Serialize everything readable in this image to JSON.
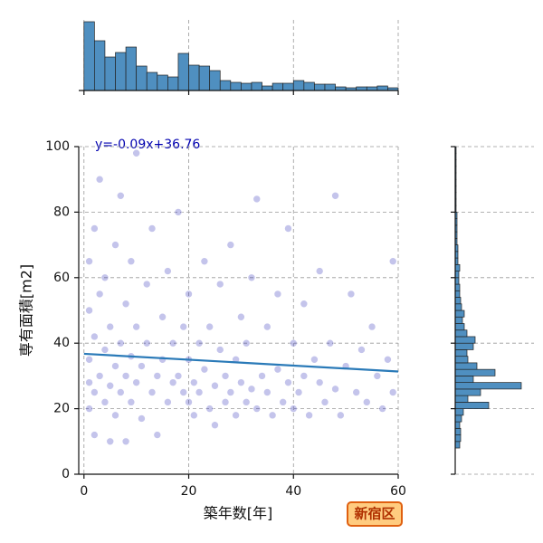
{
  "chart_data": {
    "type": "scatter",
    "x_label": "築年数[年]",
    "y_label": "専有面積[m2]",
    "annotation": "y=-0.09x+36.76",
    "badge": "新宿区",
    "xlim": [
      -1,
      60
    ],
    "ylim": [
      0,
      100
    ],
    "xticks": [
      0,
      20,
      40,
      60
    ],
    "yticks": [
      0,
      20,
      40,
      60,
      80,
      100
    ],
    "grid": true,
    "color": "#2a2ab8",
    "x": [
      1,
      1,
      1,
      1,
      1,
      2,
      2,
      2,
      2,
      3,
      3,
      3,
      4,
      4,
      4,
      5,
      5,
      5,
      6,
      6,
      6,
      7,
      7,
      7,
      8,
      8,
      8,
      9,
      9,
      9,
      10,
      10,
      10,
      11,
      11,
      12,
      12,
      13,
      13,
      14,
      14,
      15,
      15,
      16,
      16,
      17,
      17,
      18,
      18,
      19,
      19,
      20,
      20,
      20,
      21,
      21,
      22,
      22,
      23,
      23,
      24,
      24,
      25,
      25,
      26,
      26,
      27,
      27,
      28,
      28,
      29,
      29,
      30,
      30,
      31,
      31,
      32,
      32,
      33,
      33,
      34,
      35,
      35,
      36,
      37,
      37,
      38,
      39,
      39,
      40,
      40,
      41,
      42,
      42,
      43,
      44,
      45,
      45,
      46,
      47,
      48,
      48,
      49,
      50,
      51,
      52,
      53,
      54,
      55,
      56,
      57,
      58,
      59,
      59
    ],
    "values": [
      35,
      50,
      20,
      65,
      28,
      42,
      25,
      75,
      12,
      30,
      55,
      90,
      38,
      22,
      60,
      10,
      45,
      27,
      33,
      70,
      18,
      40,
      25,
      85,
      30,
      52,
      10,
      36,
      22,
      65,
      28,
      45,
      98,
      33,
      17,
      40,
      58,
      25,
      75,
      30,
      12,
      48,
      35,
      22,
      62,
      40,
      28,
      30,
      80,
      25,
      45,
      22,
      35,
      55,
      28,
      18,
      40,
      25,
      32,
      65,
      20,
      45,
      27,
      15,
      38,
      58,
      22,
      30,
      25,
      70,
      35,
      18,
      28,
      48,
      22,
      40,
      26,
      60,
      20,
      84,
      30,
      25,
      45,
      18,
      32,
      55,
      22,
      28,
      75,
      20,
      40,
      25,
      30,
      52,
      18,
      35,
      28,
      62,
      22,
      40,
      26,
      85,
      18,
      33,
      55,
      25,
      38,
      22,
      45,
      30,
      20,
      35,
      65,
      25
    ],
    "regression": {
      "color": "#2a7ab8",
      "x": [
        0,
        60
      ],
      "values": [
        36.76,
        31.36
      ]
    },
    "marginal_x": {
      "type": "histogram",
      "color": "#4f8fc0",
      "bins": [
        0,
        2,
        4,
        6,
        8,
        10,
        12,
        14,
        16,
        18,
        20,
        22,
        24,
        26,
        28,
        30,
        32,
        34,
        36,
        38,
        40,
        42,
        44,
        46,
        48,
        50,
        52,
        54,
        56,
        58,
        60
      ],
      "values": [
        76,
        55,
        37,
        42,
        48,
        27,
        20,
        17,
        15,
        41,
        28,
        27,
        22,
        11,
        9,
        8,
        9,
        5,
        8,
        8,
        11,
        9,
        7,
        7,
        4,
        3,
        4,
        4,
        5,
        3
      ]
    },
    "marginal_y": {
      "type": "histogram",
      "color": "#4f8fc0",
      "bins": [
        8,
        10,
        12,
        14,
        16,
        18,
        20,
        22,
        24,
        26,
        28,
        30,
        32,
        34,
        36,
        38,
        40,
        42,
        44,
        46,
        48,
        50,
        52,
        54,
        56,
        58,
        60,
        62,
        64,
        66,
        68,
        70,
        72,
        74,
        76,
        78,
        80,
        82,
        84,
        86,
        88,
        90,
        92,
        94,
        96,
        98,
        100
      ],
      "values": [
        5,
        6,
        6,
        5,
        7,
        9,
        37,
        14,
        28,
        73,
        20,
        44,
        24,
        14,
        13,
        20,
        22,
        13,
        10,
        8,
        10,
        7,
        6,
        5,
        5,
        4,
        4,
        5,
        3,
        3,
        3,
        2,
        2,
        2,
        2,
        2,
        1,
        1,
        1,
        1,
        1,
        1,
        1,
        1,
        1,
        1
      ]
    }
  }
}
